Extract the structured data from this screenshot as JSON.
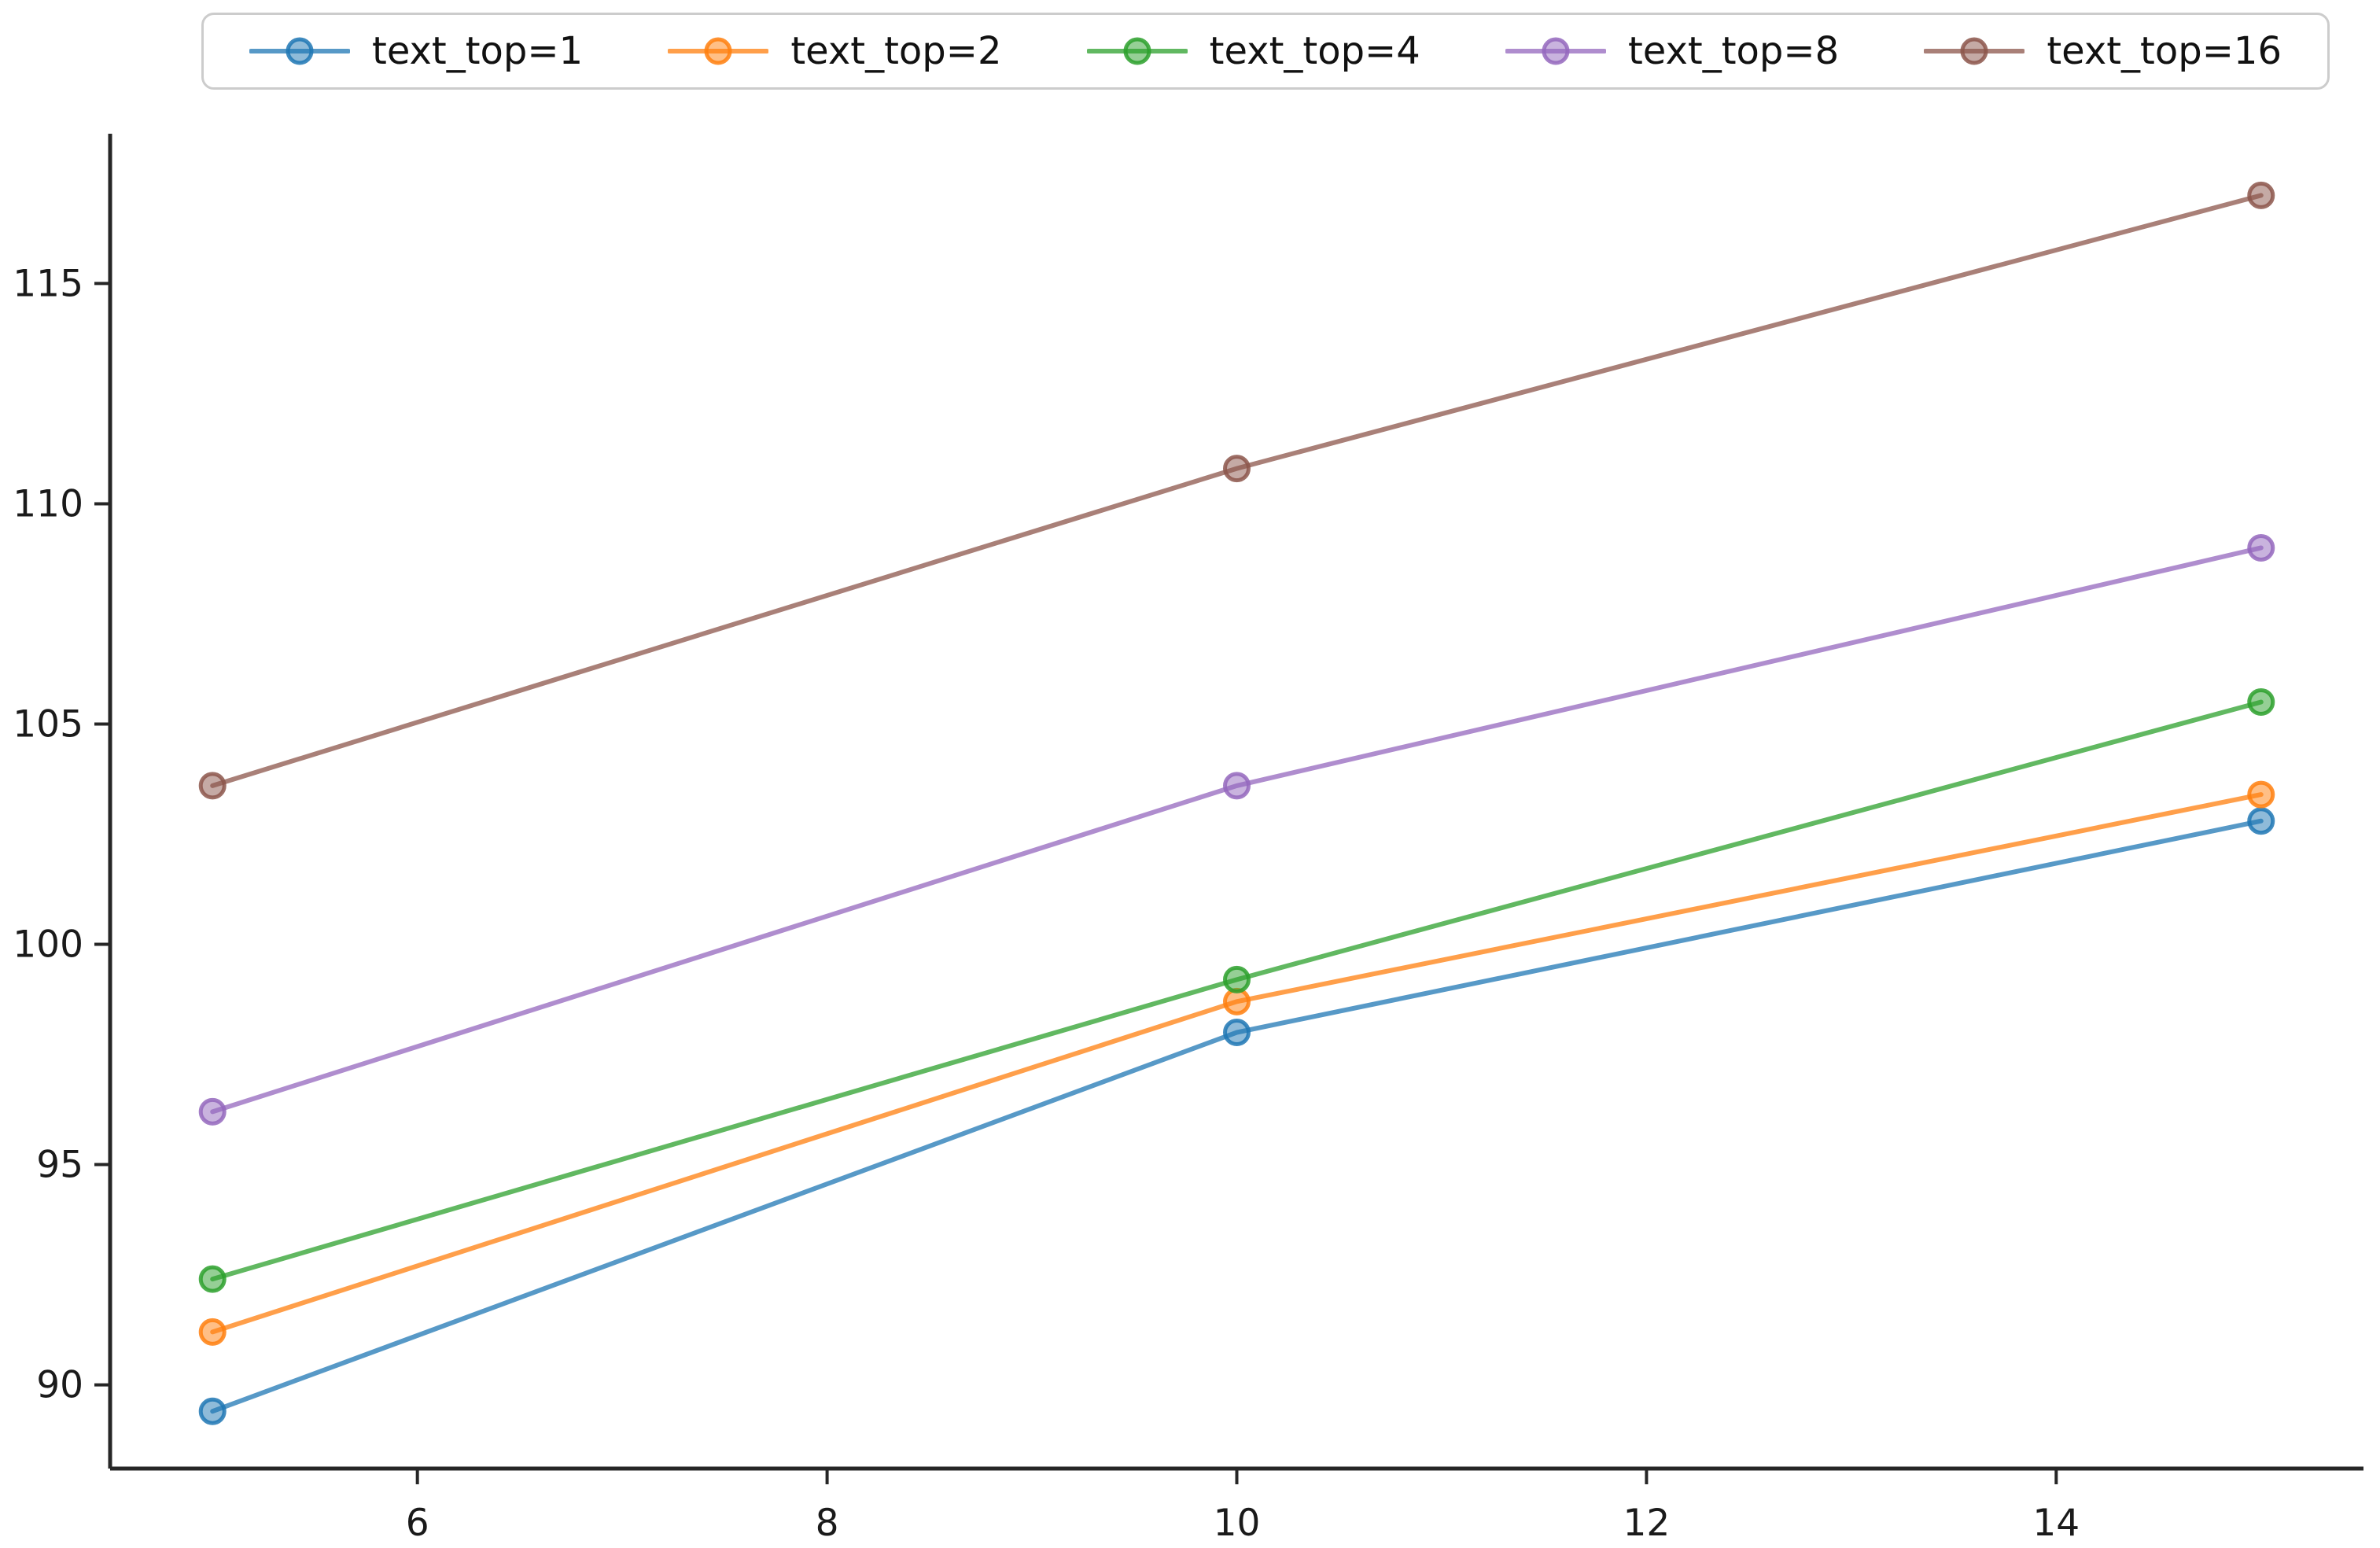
{
  "chart_data": {
    "type": "line",
    "title": "",
    "xlabel": "",
    "ylabel": "",
    "x": [
      5,
      10,
      15
    ],
    "series": [
      {
        "name": "text_top=1",
        "color": "#1f77b4",
        "values": [
          89.4,
          98.0,
          102.8
        ]
      },
      {
        "name": "text_top=2",
        "color": "#ff7f0e",
        "values": [
          91.2,
          98.7,
          103.4
        ]
      },
      {
        "name": "text_top=4",
        "color": "#2ca02c",
        "values": [
          92.4,
          99.2,
          105.5
        ]
      },
      {
        "name": "text_top=8",
        "color": "#9467bd",
        "values": [
          96.2,
          103.6,
          109.0
        ]
      },
      {
        "name": "text_top=16",
        "color": "#8c564b",
        "values": [
          103.6,
          110.8,
          117.0
        ]
      }
    ],
    "xticks": [
      "6",
      "8",
      "10",
      "12",
      "14"
    ],
    "xtick_values": [
      6,
      8,
      10,
      12,
      14
    ],
    "yticks": [
      "90",
      "95",
      "100",
      "105",
      "110",
      "115"
    ],
    "ytick_values": [
      90,
      95,
      100,
      105,
      110,
      115
    ],
    "xlim": [
      4.5,
      15.5
    ],
    "ylim": [
      88.1,
      118.4
    ],
    "grid": false,
    "legend_position": "top-horizontal",
    "marker": "o",
    "line_alpha": 0.75,
    "marker_fill_alpha": 0.5,
    "axis_color": "#262626"
  }
}
